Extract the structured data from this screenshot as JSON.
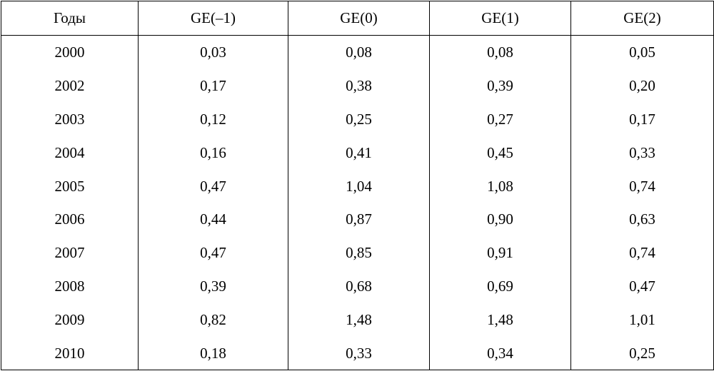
{
  "table": {
    "headers": [
      "Годы",
      "GE(–1)",
      "GE(0)",
      "GE(1)",
      "GE(2)"
    ],
    "rows": [
      [
        "2000",
        "0,03",
        "0,08",
        "0,08",
        "0,05"
      ],
      [
        "2002",
        "0,17",
        "0,38",
        "0,39",
        "0,20"
      ],
      [
        "2003",
        "0,12",
        "0,25",
        "0,27",
        "0,17"
      ],
      [
        "2004",
        "0,16",
        "0,41",
        "0,45",
        "0,33"
      ],
      [
        "2005",
        "0,47",
        "1,04",
        "1,08",
        "0,74"
      ],
      [
        "2006",
        "0,44",
        "0,87",
        "0,90",
        "0,63"
      ],
      [
        "2007",
        "0,47",
        "0,85",
        "0,91",
        "0,74"
      ],
      [
        "2008",
        "0,39",
        "0,68",
        "0,69",
        "0,47"
      ],
      [
        "2009",
        "0,82",
        "1,48",
        "1,48",
        "1,01"
      ],
      [
        "2010",
        "0,18",
        "0,33",
        "0,34",
        "0,25"
      ]
    ]
  }
}
